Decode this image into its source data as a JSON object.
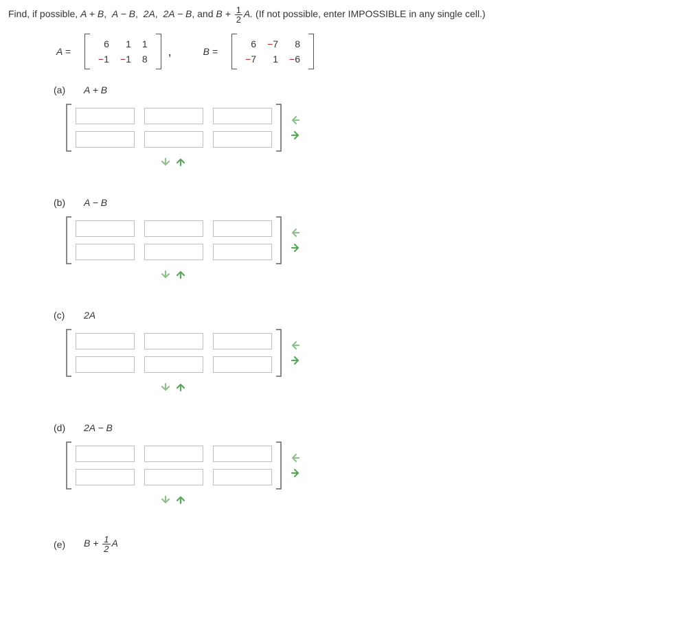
{
  "instructions": {
    "prefix": "Find, if possible, ",
    "terms": [
      "A + B",
      "A − B",
      "2A",
      "2A − B"
    ],
    "and": " and ",
    "lastTermPrefix": "B + ",
    "lastTermSuffix": "A.",
    "note": " (If not possible, enter IMPOSSIBLE in any single cell.)"
  },
  "half": {
    "num": "1",
    "den": "2"
  },
  "matA": {
    "label": "A = ",
    "rows": [
      [
        6,
        1,
        1
      ],
      [
        -1,
        -1,
        8
      ]
    ]
  },
  "comma": ",",
  "matB": {
    "label": "B = ",
    "rows": [
      [
        6,
        -7,
        8
      ],
      [
        -7,
        1,
        -6
      ]
    ]
  },
  "parts": [
    {
      "letter": "(a)",
      "expr": "A + B"
    },
    {
      "letter": "(b)",
      "expr": "A − B"
    },
    {
      "letter": "(c)",
      "expr": "2A"
    },
    {
      "letter": "(d)",
      "expr": "2A − B"
    },
    {
      "letter": "(e)",
      "exprPrefix": "B + ",
      "exprSuffix": "A",
      "useFrac": true
    }
  ],
  "inputGrid": {
    "rows": 2,
    "cols": 3
  },
  "arrows": {
    "leftColor": "#8fbf8f",
    "rightColor": "#5aa65a",
    "downColor": "#8fbf8f",
    "upColor": "#5aa65a"
  },
  "styling": {
    "negativeColor": "#b22222",
    "bracketColor": "#555555",
    "inputBracketColor": "#888888",
    "inputBorder": "#bfbfbf",
    "inputWidth": 86,
    "inputHeight": 24,
    "bodyWidth": 1006,
    "fontFamily": "Verdana",
    "fontSize": 14
  }
}
